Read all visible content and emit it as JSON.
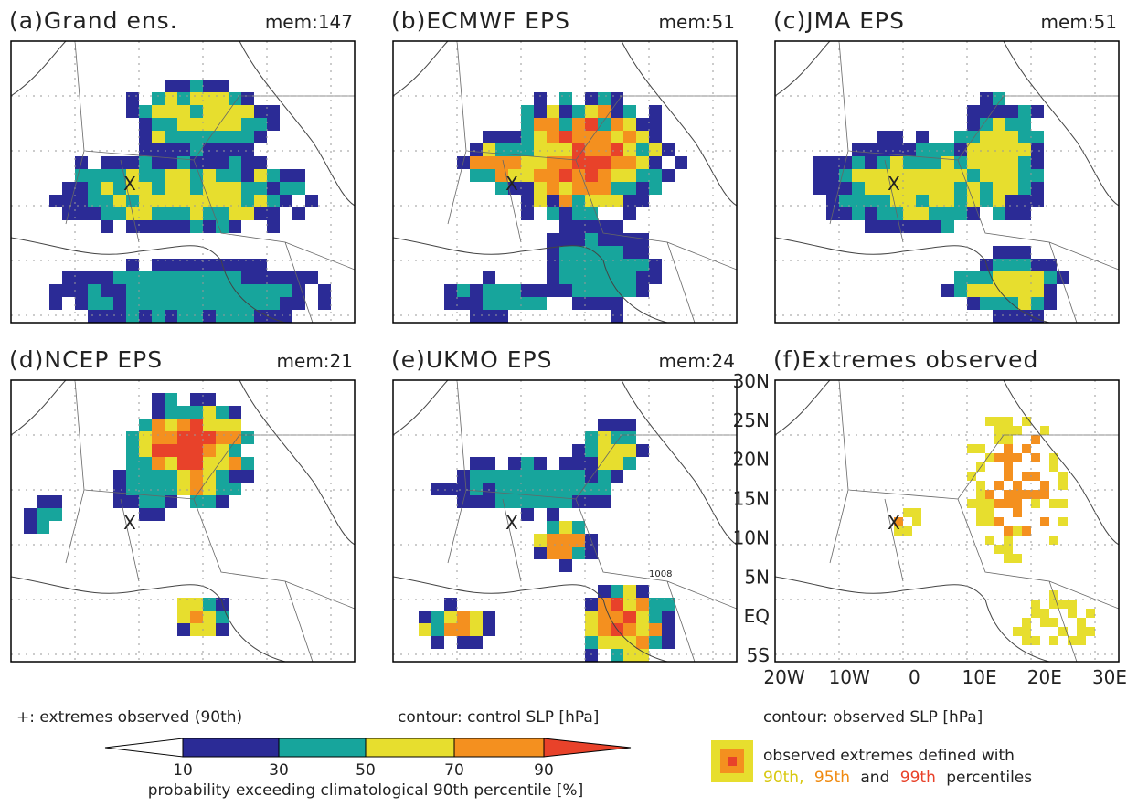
{
  "panels": [
    {
      "label": "(a)Grand ens.",
      "members": "mem:147"
    },
    {
      "label": "(b)ECMWF EPS",
      "members": "mem:51"
    },
    {
      "label": "(c)JMA EPS",
      "members": "mem:51"
    },
    {
      "label": "(d)NCEP EPS",
      "members": "mem:21"
    },
    {
      "label": "(e)UKMO EPS",
      "members": "mem:24",
      "contour_label": "1008"
    },
    {
      "label": "(f)Extremes observed",
      "lat_labels": [
        "30N",
        "25N",
        "20N",
        "15N",
        "10N",
        "5N",
        "EQ",
        "5S"
      ],
      "lon_labels": [
        "20W",
        "10W",
        "0",
        "10E",
        "20E",
        "30E"
      ]
    }
  ],
  "marker": "X",
  "notes": {
    "plus": "+: extremes observed (90th)",
    "control": "contour: control SLP [hPa]",
    "observed": "contour: observed SLP [hPa]"
  },
  "colorbar": {
    "ticks": [
      "10",
      "30",
      "50",
      "70",
      "90"
    ],
    "caption": "probability exceeding climatological 90th percentile [%]"
  },
  "legend": {
    "line1": "observed extremes defined with",
    "line2": [
      "90th,",
      "95th",
      "and",
      "99th",
      "percentiles"
    ]
  }
}
